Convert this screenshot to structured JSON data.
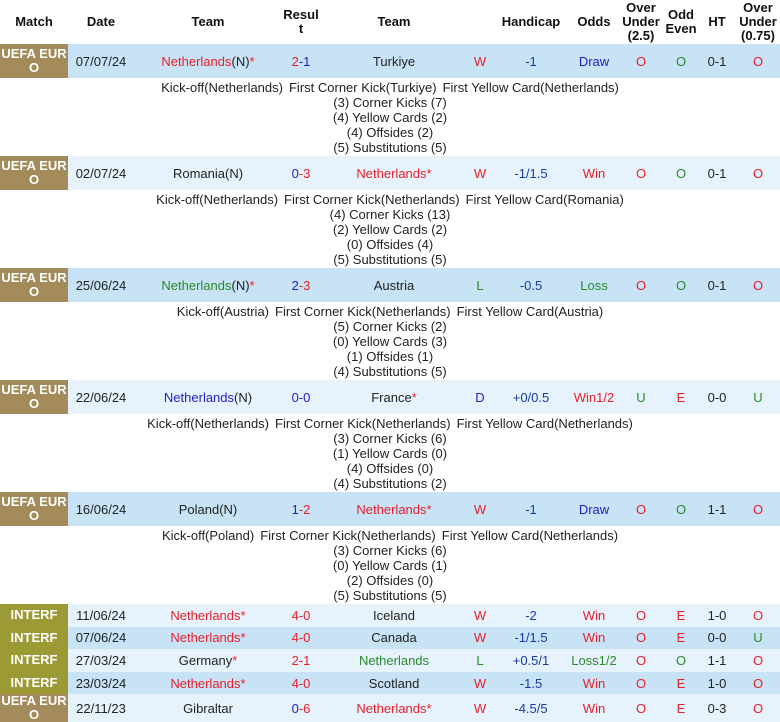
{
  "headers": [
    "Match",
    "Date",
    "Team",
    "Result",
    "Team",
    "",
    "Handicap",
    "Odds",
    "Over Under (2.5)",
    "Odd Even",
    "HT",
    "Over Under (0.75)"
  ],
  "colors": {
    "win": "#e8202a",
    "loss": "#2a8a2a",
    "draw": "#2020c8",
    "euro_bg": "#a38b5c",
    "interf_bg": "#9c9a35"
  },
  "rows": [
    {
      "comp": "UEFA EURO",
      "type": "euro",
      "date": "07/07/24",
      "home": "Netherlands",
      "home_suffix": "(N)",
      "home_star": "*",
      "home_color": "red",
      "s1": "2",
      "s1c": "red",
      "s2": "1",
      "s2c": "blue",
      "away": "Turkiye",
      "away_suffix": "",
      "away_star": "",
      "away_color": "dark",
      "res": "W",
      "res_c": "red",
      "hcp": "-1",
      "odds": "Draw",
      "odds_c": "blue",
      "ou": "O",
      "ou_c": "red",
      "oe": "O",
      "oe_c": "green",
      "ht": "0-1",
      "ou75": "O",
      "ou75_c": "red",
      "details": {
        "kickoff": "Kick-off(Netherlands)",
        "corner": "First Corner Kick(Turkiye)",
        "yellow": "First Yellow Card(Netherlands)",
        "stats": [
          "(3) Corner Kicks (7)",
          "(4) Yellow Cards (2)",
          "(4) Offsides (2)",
          "(5) Substitutions (5)"
        ]
      }
    },
    {
      "comp": "UEFA EURO",
      "type": "euro",
      "date": "02/07/24",
      "home": "Romania",
      "home_suffix": "(N)",
      "home_star": "",
      "home_color": "dark",
      "s1": "0",
      "s1c": "blue",
      "s2": "3",
      "s2c": "red",
      "away": "Netherlands",
      "away_suffix": "",
      "away_star": "*",
      "away_color": "red",
      "res": "W",
      "res_c": "red",
      "hcp": "-1/1.5",
      "odds": "Win",
      "odds_c": "red",
      "ou": "O",
      "ou_c": "red",
      "oe": "O",
      "oe_c": "green",
      "ht": "0-1",
      "ou75": "O",
      "ou75_c": "red",
      "details": {
        "kickoff": "Kick-off(Netherlands)",
        "corner": "First Corner Kick(Netherlands)",
        "yellow": "First Yellow Card(Romania)",
        "stats": [
          "(4) Corner Kicks (13)",
          "(2) Yellow Cards (2)",
          "(0) Offsides (4)",
          "(5) Substitutions (5)"
        ]
      }
    },
    {
      "comp": "UEFA EURO",
      "type": "euro",
      "date": "25/06/24",
      "home": "Netherlands",
      "home_suffix": "(N)",
      "home_star": "*",
      "home_color": "green",
      "s1": "2",
      "s1c": "blue",
      "s2": "3",
      "s2c": "red",
      "away": "Austria",
      "away_suffix": "",
      "away_star": "",
      "away_color": "dark",
      "res": "L",
      "res_c": "green",
      "hcp": "-0.5",
      "odds": "Loss",
      "odds_c": "green",
      "ou": "O",
      "ou_c": "red",
      "oe": "O",
      "oe_c": "green",
      "ht": "0-1",
      "ou75": "O",
      "ou75_c": "red",
      "details": {
        "kickoff": "Kick-off(Austria)",
        "corner": "First Corner Kick(Netherlands)",
        "yellow": "First Yellow Card(Austria)",
        "stats": [
          "(5) Corner Kicks (2)",
          "(0) Yellow Cards (3)",
          "(1) Offsides (1)",
          "(4) Substitutions (5)"
        ]
      }
    },
    {
      "comp": "UEFA EURO",
      "type": "euro",
      "date": "22/06/24",
      "home": "Netherlands",
      "home_suffix": "(N)",
      "home_star": "",
      "home_color": "blue",
      "s1": "0",
      "s1c": "blue",
      "s2": "0",
      "s2c": "blue",
      "away": "France",
      "away_suffix": "",
      "away_star": "*",
      "away_color": "dark",
      "res": "D",
      "res_c": "blue",
      "hcp": "+0/0.5",
      "odds": "Win1/2",
      "odds_c": "red",
      "ou": "U",
      "ou_c": "green",
      "oe": "E",
      "oe_c": "red",
      "ht": "0-0",
      "ou75": "U",
      "ou75_c": "green",
      "details": {
        "kickoff": "Kick-off(Netherlands)",
        "corner": "First Corner Kick(Netherlands)",
        "yellow": "First Yellow Card(Netherlands)",
        "stats": [
          "(3) Corner Kicks (6)",
          "(1) Yellow Cards (0)",
          "(4) Offsides (0)",
          "(4) Substitutions (2)"
        ]
      }
    },
    {
      "comp": "UEFA EURO",
      "type": "euro",
      "date": "16/06/24",
      "home": "Poland",
      "home_suffix": "(N)",
      "home_star": "",
      "home_color": "dark",
      "s1": "1",
      "s1c": "blue",
      "s2": "2",
      "s2c": "red",
      "away": "Netherlands",
      "away_suffix": "",
      "away_star": "*",
      "away_color": "red",
      "res": "W",
      "res_c": "red",
      "hcp": "-1",
      "odds": "Draw",
      "odds_c": "blue",
      "ou": "O",
      "ou_c": "red",
      "oe": "O",
      "oe_c": "green",
      "ht": "1-1",
      "ou75": "O",
      "ou75_c": "red",
      "details": {
        "kickoff": "Kick-off(Poland)",
        "corner": "First Corner Kick(Netherlands)",
        "yellow": "First Yellow Card(Netherlands)",
        "stats": [
          "(3) Corner Kicks (6)",
          "(0) Yellow Cards (1)",
          "(2) Offsides (0)",
          "(5) Substitutions (5)"
        ]
      }
    },
    {
      "comp": "INTERF",
      "type": "interf",
      "date": "11/06/24",
      "home": "Netherlands",
      "home_suffix": "",
      "home_star": "*",
      "home_color": "red",
      "s1": "4",
      "s1c": "red",
      "s2": "0",
      "s2c": "red",
      "away": "Iceland",
      "away_suffix": "",
      "away_star": "",
      "away_color": "dark",
      "res": "W",
      "res_c": "red",
      "hcp": "-2",
      "odds": "Win",
      "odds_c": "red",
      "ou": "O",
      "ou_c": "red",
      "oe": "E",
      "oe_c": "red",
      "ht": "1-0",
      "ou75": "O",
      "ou75_c": "red"
    },
    {
      "comp": "INTERF",
      "type": "interf",
      "date": "07/06/24",
      "home": "Netherlands",
      "home_suffix": "",
      "home_star": "*",
      "home_color": "red",
      "s1": "4",
      "s1c": "red",
      "s2": "0",
      "s2c": "red",
      "away": "Canada",
      "away_suffix": "",
      "away_star": "",
      "away_color": "dark",
      "res": "W",
      "res_c": "red",
      "hcp": "-1/1.5",
      "odds": "Win",
      "odds_c": "red",
      "ou": "O",
      "ou_c": "red",
      "oe": "E",
      "oe_c": "red",
      "ht": "0-0",
      "ou75": "U",
      "ou75_c": "green"
    },
    {
      "comp": "INTERF",
      "type": "interf",
      "date": "27/03/24",
      "home": "Germany",
      "home_suffix": "",
      "home_star": "*",
      "home_color": "dark",
      "s1": "2",
      "s1c": "red",
      "s2": "1",
      "s2c": "red",
      "away": "Netherlands",
      "away_suffix": "",
      "away_star": "",
      "away_color": "green",
      "res": "L",
      "res_c": "green",
      "hcp": "+0.5/1",
      "odds": "Loss1/2",
      "odds_c": "green",
      "ou": "O",
      "ou_c": "red",
      "oe": "O",
      "oe_c": "green",
      "ht": "1-1",
      "ou75": "O",
      "ou75_c": "red"
    },
    {
      "comp": "INTERF",
      "type": "interf",
      "date": "23/03/24",
      "home": "Netherlands",
      "home_suffix": "",
      "home_star": "*",
      "home_color": "red",
      "s1": "4",
      "s1c": "red",
      "s2": "0",
      "s2c": "red",
      "away": "Scotland",
      "away_suffix": "",
      "away_star": "",
      "away_color": "dark",
      "res": "W",
      "res_c": "red",
      "hcp": "-1.5",
      "odds": "Win",
      "odds_c": "red",
      "ou": "O",
      "ou_c": "red",
      "oe": "E",
      "oe_c": "red",
      "ht": "1-0",
      "ou75": "O",
      "ou75_c": "red"
    },
    {
      "comp": "UEFA EURO",
      "type": "euro",
      "date": "22/11/23",
      "home": "Gibraltar",
      "home_suffix": "",
      "home_star": "",
      "home_color": "dark",
      "s1": "0",
      "s1c": "blue",
      "s2": "6",
      "s2c": "red",
      "away": "Netherlands",
      "away_suffix": "",
      "away_star": "*",
      "away_color": "red",
      "res": "W",
      "res_c": "red",
      "hcp": "-4.5/5",
      "odds": "Win",
      "odds_c": "red",
      "ou": "O",
      "ou_c": "red",
      "oe": "E",
      "oe_c": "red",
      "ht": "0-3",
      "ou75": "O",
      "ou75_c": "red"
    }
  ]
}
